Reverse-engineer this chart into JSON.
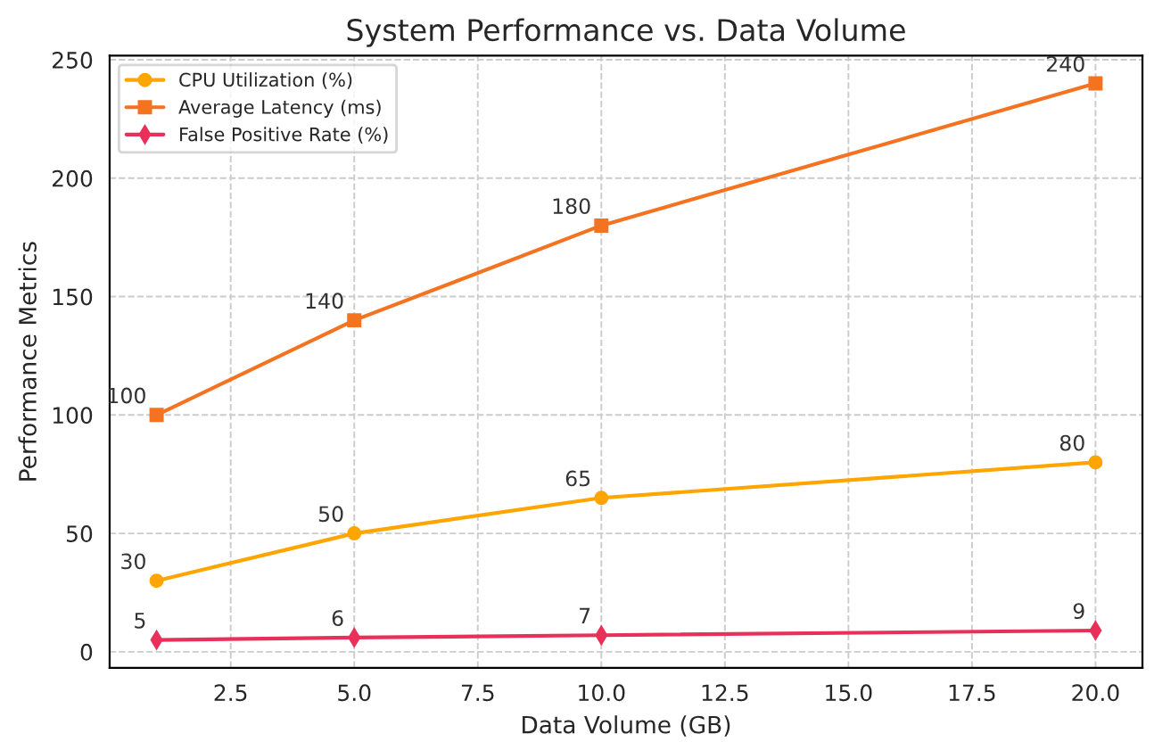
{
  "chart_data": {
    "type": "line",
    "title": "System Performance vs. Data Volume",
    "xlabel": "Data Volume (GB)",
    "ylabel": "Performance Metrics",
    "x": [
      1,
      5,
      10,
      20
    ],
    "series": [
      {
        "name": "CPU Utilization (%)",
        "color": "#ffa500",
        "marker": "circle",
        "values": [
          30,
          50,
          65,
          80
        ]
      },
      {
        "name": "Average Latency (ms)",
        "color": "#f47321",
        "marker": "square",
        "values": [
          100,
          140,
          180,
          240
        ]
      },
      {
        "name": "False Positive Rate (%)",
        "color": "#e8315a",
        "marker": "diamond",
        "values": [
          5,
          6,
          7,
          9
        ]
      }
    ],
    "xlim": [
      0.05,
      20.95
    ],
    "xticks": [
      {
        "value": 2.5,
        "label": "2.5"
      },
      {
        "value": 5,
        "label": "5.0"
      },
      {
        "value": 7.5,
        "label": "7.5"
      },
      {
        "value": 10,
        "label": "10.0"
      },
      {
        "value": 12.5,
        "label": "12.5"
      },
      {
        "value": 15,
        "label": "15.0"
      },
      {
        "value": 17.5,
        "label": "17.5"
      },
      {
        "value": 20,
        "label": "20.0"
      }
    ],
    "ylim": [
      -6.75,
      251.75
    ],
    "yticks": [
      0,
      50,
      100,
      150,
      200,
      250
    ],
    "grid": true,
    "legend": "top left",
    "data_labels": true,
    "line_style": "solid"
  }
}
